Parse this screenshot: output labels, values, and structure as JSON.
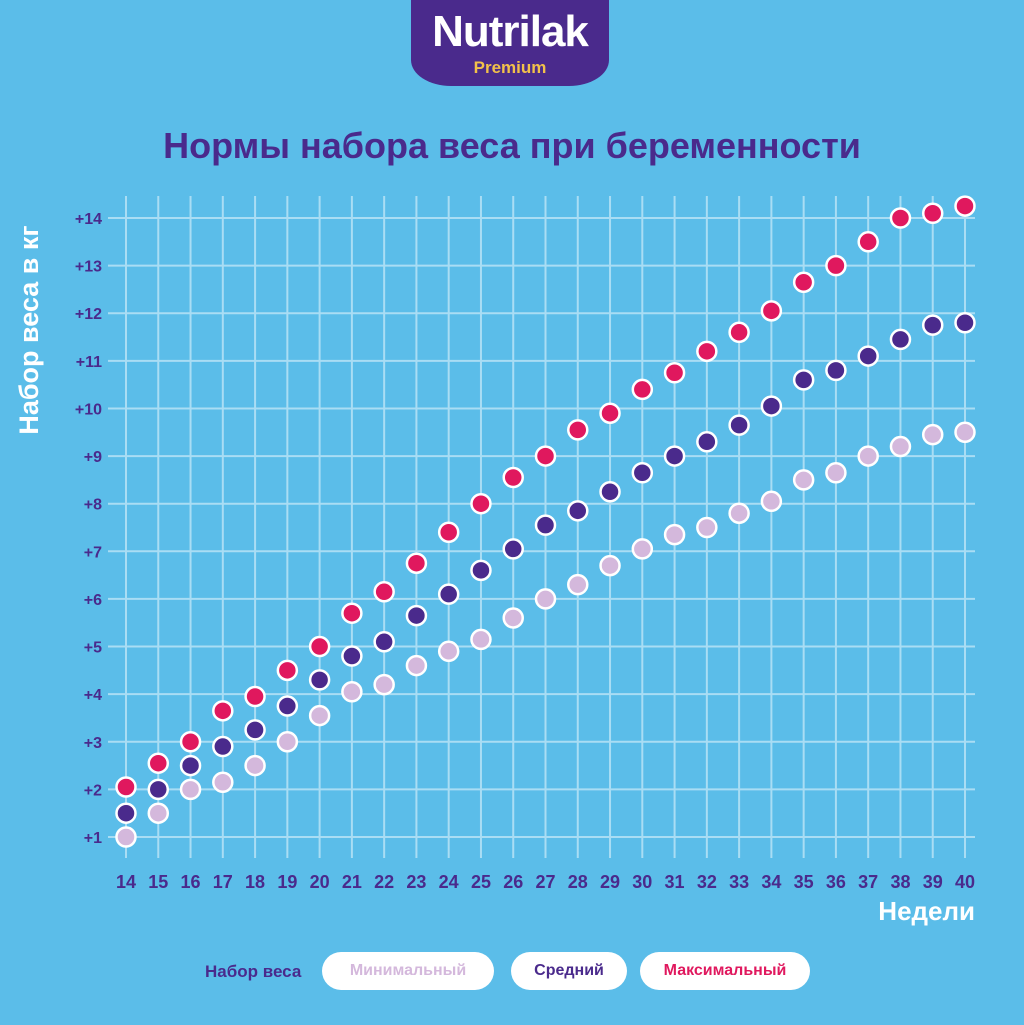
{
  "logo": {
    "name": "Nutrilak",
    "sub": "Premium"
  },
  "colors": {
    "background": "#5bbde9",
    "grid": "#a9ddf4",
    "title": "#4a2a8c",
    "min": "#d4b8dc",
    "avg": "#4a2a8c",
    "max": "#e0185e"
  },
  "legend": {
    "label": "Набор веса",
    "min": "Минимальный",
    "avg": "Средний",
    "max": "Максимальный"
  },
  "chart_data": {
    "type": "scatter",
    "title": "Нормы набора веса при беременности",
    "xlabel": "Недели",
    "ylabel": "Набор веса в кг",
    "x": [
      14,
      15,
      16,
      17,
      18,
      19,
      20,
      21,
      22,
      23,
      24,
      25,
      26,
      27,
      28,
      29,
      30,
      31,
      32,
      33,
      34,
      35,
      36,
      37,
      38,
      39,
      40
    ],
    "xlim": [
      14,
      40
    ],
    "ylim": [
      1,
      14
    ],
    "yticks": [
      "+1",
      "+2",
      "+3",
      "+4",
      "+5",
      "+6",
      "+7",
      "+8",
      "+9",
      "+10",
      "+11",
      "+12",
      "+13",
      "+14"
    ],
    "grid": true,
    "series": [
      {
        "name": "Минимальный",
        "color": "#d4b8dc",
        "values": [
          1.0,
          1.5,
          2.0,
          2.15,
          2.5,
          3.0,
          3.55,
          4.05,
          4.2,
          4.6,
          4.9,
          5.15,
          5.6,
          6.0,
          6.3,
          6.7,
          7.05,
          7.35,
          7.5,
          7.8,
          8.05,
          8.5,
          8.65,
          9.0,
          9.2,
          9.45,
          9.5
        ]
      },
      {
        "name": "Средний",
        "color": "#4a2a8c",
        "values": [
          1.5,
          2.0,
          2.5,
          2.9,
          3.25,
          3.75,
          4.3,
          4.8,
          5.1,
          5.65,
          6.1,
          6.6,
          7.05,
          7.55,
          7.85,
          8.25,
          8.65,
          9.0,
          9.3,
          9.65,
          10.05,
          10.6,
          10.8,
          11.1,
          11.45,
          11.75,
          11.8
        ]
      },
      {
        "name": "Максимальный",
        "color": "#e0185e",
        "values": [
          2.05,
          2.55,
          3.0,
          3.65,
          3.95,
          4.5,
          5.0,
          5.7,
          6.15,
          6.75,
          7.4,
          8.0,
          8.55,
          9.0,
          9.55,
          9.9,
          10.4,
          10.75,
          11.2,
          11.6,
          12.05,
          12.65,
          13.0,
          13.5,
          14.0,
          14.1,
          14.25
        ]
      }
    ]
  }
}
